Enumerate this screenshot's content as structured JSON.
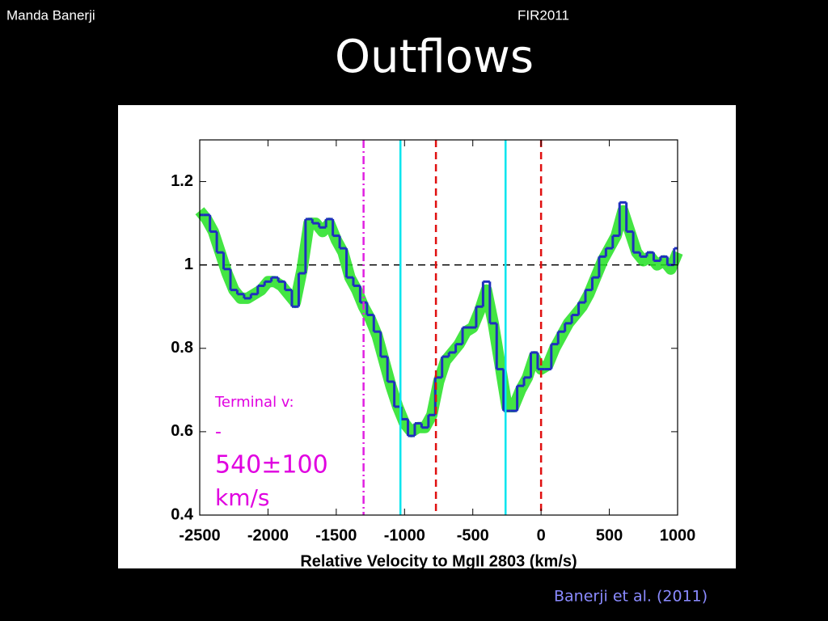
{
  "header": {
    "author": "Manda Banerji",
    "event": "FIR2011",
    "title": "Outflows"
  },
  "footer": {
    "citation": "Banerji et al. (2011)"
  },
  "chart_data": {
    "type": "line",
    "xlabel": "Relative Velocity to MgII 2803 (km/s)",
    "annotation": [
      "Terminal v:",
      "-",
      "540±100",
      "km/s"
    ],
    "annotation_color": "#e000e0",
    "x": [
      -2500,
      -2450,
      -2400,
      -2350,
      -2300,
      -2250,
      -2200,
      -2150,
      -2100,
      -2050,
      -2000,
      -1950,
      -1900,
      -1850,
      -1800,
      -1750,
      -1700,
      -1650,
      -1600,
      -1550,
      -1500,
      -1450,
      -1400,
      -1350,
      -1300,
      -1250,
      -1200,
      -1150,
      -1100,
      -1050,
      -1000,
      -950,
      -900,
      -850,
      -800,
      -750,
      -700,
      -650,
      -600,
      -550,
      -500,
      -450,
      -400,
      -350,
      -300,
      -250,
      -200,
      -150,
      -100,
      -50,
      0,
      50,
      100,
      150,
      200,
      250,
      300,
      350,
      400,
      450,
      500,
      550,
      600,
      650,
      700,
      750,
      800,
      850,
      900,
      950,
      1000
    ],
    "series": [
      {
        "color": "#22e022",
        "style": "band",
        "values": [
          1.13,
          1.11,
          1.08,
          1.03,
          0.98,
          0.94,
          0.92,
          0.92,
          0.93,
          0.94,
          0.96,
          0.96,
          0.95,
          0.93,
          0.91,
          0.99,
          1.1,
          1.1,
          1.08,
          1.1,
          1.06,
          1.03,
          0.97,
          0.94,
          0.9,
          0.87,
          0.83,
          0.77,
          0.71,
          0.66,
          0.62,
          0.6,
          0.61,
          0.61,
          0.64,
          0.72,
          0.77,
          0.79,
          0.81,
          0.84,
          0.85,
          0.89,
          0.94,
          0.86,
          0.76,
          0.66,
          0.66,
          0.7,
          0.73,
          0.78,
          0.75,
          0.76,
          0.8,
          0.83,
          0.86,
          0.88,
          0.9,
          0.93,
          0.97,
          1.01,
          1.04,
          1.07,
          1.13,
          1.08,
          1.03,
          1.01,
          1.02,
          1.0,
          1.01,
          0.99,
          1.03
        ]
      },
      {
        "color": "#1f2fbf",
        "style": "step",
        "values": [
          1.12,
          1.12,
          1.08,
          1.03,
          0.99,
          0.94,
          0.93,
          0.92,
          0.93,
          0.95,
          0.96,
          0.97,
          0.96,
          0.94,
          0.9,
          0.98,
          1.11,
          1.1,
          1.09,
          1.11,
          1.07,
          1.04,
          0.97,
          0.95,
          0.91,
          0.88,
          0.84,
          0.78,
          0.72,
          0.66,
          0.63,
          0.59,
          0.62,
          0.61,
          0.64,
          0.73,
          0.78,
          0.79,
          0.81,
          0.85,
          0.85,
          0.9,
          0.96,
          0.86,
          0.75,
          0.65,
          0.65,
          0.71,
          0.73,
          0.79,
          0.75,
          0.75,
          0.81,
          0.84,
          0.86,
          0.88,
          0.91,
          0.94,
          0.97,
          1.02,
          1.04,
          1.07,
          1.15,
          1.08,
          1.03,
          1.02,
          1.03,
          1.01,
          1.02,
          1.0,
          1.04
        ]
      }
    ],
    "hline": {
      "y": 1,
      "color": "#000000",
      "dash": "dash"
    },
    "vlines": [
      {
        "x": -1300,
        "color": "#e020e0",
        "dash": "dashdot"
      },
      {
        "x": -1030,
        "color": "#00e5ee",
        "dash": "solid"
      },
      {
        "x": -770,
        "color": "#e01010",
        "dash": "dash"
      },
      {
        "x": -260,
        "color": "#00e5ee",
        "dash": "solid"
      },
      {
        "x": 0,
        "color": "#e01010",
        "dash": "dash"
      }
    ],
    "xlim": [
      -2500,
      1000
    ],
    "xticks": [
      -2500,
      -2000,
      -1500,
      -1000,
      -500,
      0,
      500,
      1000
    ],
    "ylim": [
      0.4,
      1.3
    ],
    "yticks": [
      0.4,
      0.6,
      0.8,
      1,
      1.2
    ]
  }
}
